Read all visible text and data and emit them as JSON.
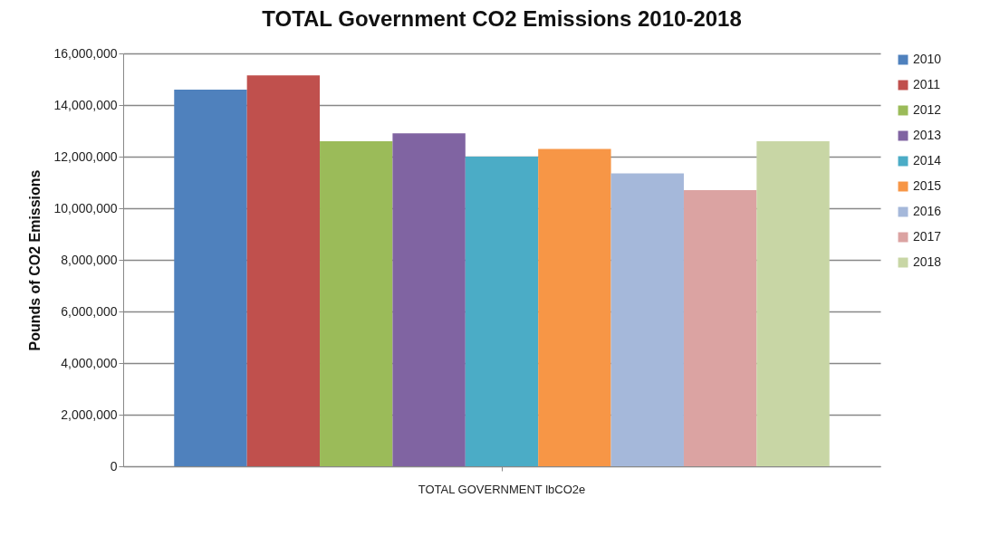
{
  "chart_data": {
    "type": "bar",
    "title": "TOTAL Government CO2 Emissions 2010-2018",
    "ylabel": "Pounds of CO2 Emissions",
    "categories": [
      "TOTAL GOVERNMENT lbCO2e"
    ],
    "series": [
      {
        "name": "2010",
        "color": "#4f81bd",
        "values": [
          14600000
        ]
      },
      {
        "name": "2011",
        "color": "#c0504d",
        "values": [
          15150000
        ]
      },
      {
        "name": "2012",
        "color": "#9bbb59",
        "values": [
          12600000
        ]
      },
      {
        "name": "2013",
        "color": "#8064a2",
        "values": [
          12900000
        ]
      },
      {
        "name": "2014",
        "color": "#4bacc6",
        "values": [
          12000000
        ]
      },
      {
        "name": "2015",
        "color": "#f79646",
        "values": [
          12300000
        ]
      },
      {
        "name": "2016",
        "color": "#a5b8da",
        "values": [
          11350000
        ]
      },
      {
        "name": "2017",
        "color": "#dba3a2",
        "values": [
          10700000
        ]
      },
      {
        "name": "2018",
        "color": "#c8d6a5",
        "values": [
          12600000
        ]
      }
    ],
    "ylim": [
      0,
      16000000
    ],
    "yticks": [
      0,
      {
        "value": 2000000,
        "label": "2,000,000"
      },
      {
        "value": 4000000,
        "label": "4,000,000"
      },
      {
        "value": 6000000,
        "label": "6,000,000"
      },
      {
        "value": 8000000,
        "label": "8,000,000"
      },
      {
        "value": 10000000,
        "label": "10,000,000"
      },
      {
        "value": 12000000,
        "label": "12,000,000"
      },
      {
        "value": 14000000,
        "label": "14,000,000"
      },
      {
        "value": 16000000,
        "label": "16,000,000"
      }
    ],
    "grid": "y",
    "legend": "right"
  }
}
